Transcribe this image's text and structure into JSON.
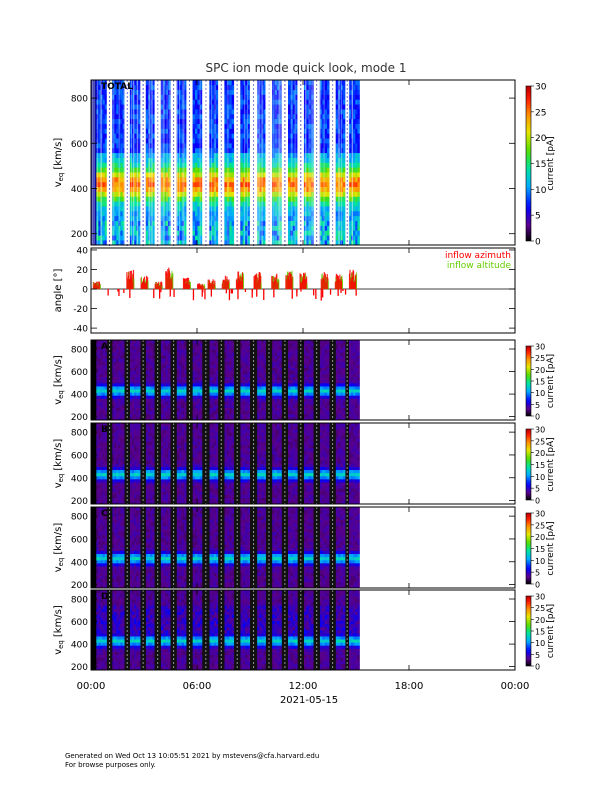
{
  "chart_data": {
    "type": "heatmap",
    "title": "SPC ion mode quick look, mode 1",
    "x_tick_labels": [
      "00:00",
      "06:00",
      "12:00",
      "18:00",
      "00:00"
    ],
    "x_date_label": "2021-05-15",
    "x_range_hours": [
      0,
      24
    ],
    "data_end_hours": 15.2,
    "panels": [
      {
        "id": "total",
        "type": "heatmap",
        "label": "TOTAL",
        "ylabel": "v_eq [km/s]",
        "ylabel_main": "v",
        "ylabel_sub": "eq",
        "ylabel_unit": "[km/s]",
        "ylim": [
          150,
          880
        ],
        "yticks": [
          200,
          400,
          600,
          800
        ],
        "colorbar": {
          "label": "current [pA]",
          "range": [
            0,
            30
          ],
          "ticks": [
            0,
            5,
            10,
            15,
            20,
            25,
            30
          ]
        }
      },
      {
        "id": "angle",
        "type": "scatter",
        "ylabel": "angle [°]",
        "ylim": [
          -45,
          42
        ],
        "yticks": [
          -40,
          -20,
          0,
          20,
          40
        ],
        "legend": [
          "inflow azimuth",
          "inflow altitude"
        ],
        "legend_colors": [
          "#ff0000",
          "#66cc00"
        ],
        "legend_position": "top-right"
      },
      {
        "id": "a",
        "type": "heatmap",
        "label": "A",
        "ylabel": "v_eq [km/s]",
        "ylabel_main": "v",
        "ylabel_sub": "eq",
        "ylabel_unit": "[km/s]",
        "ylim": [
          170,
          880
        ],
        "yticks": [
          200,
          400,
          600,
          800
        ],
        "minor_yticks": [
          300,
          500,
          700
        ],
        "colorbar": {
          "label": "current [pA]",
          "range": [
            0,
            30
          ],
          "ticks": [
            0,
            5,
            10,
            15,
            20,
            25,
            30
          ]
        }
      },
      {
        "id": "b",
        "type": "heatmap",
        "label": "B",
        "ylabel": "v_eq [km/s]",
        "ylabel_main": "v",
        "ylabel_sub": "eq",
        "ylabel_unit": "[km/s]",
        "ylim": [
          170,
          880
        ],
        "yticks": [
          200,
          400,
          600,
          800
        ],
        "minor_yticks": [
          300,
          500,
          700
        ],
        "colorbar": {
          "label": "current [pA]",
          "range": [
            0,
            30
          ],
          "ticks": [
            0,
            5,
            10,
            15,
            20,
            25,
            30
          ]
        }
      },
      {
        "id": "c",
        "type": "heatmap",
        "label": "C",
        "ylabel": "v_eq [km/s]",
        "ylabel_main": "v",
        "ylabel_sub": "eq",
        "ylabel_unit": "[km/s]",
        "ylim": [
          170,
          880
        ],
        "yticks": [
          200,
          400,
          600,
          800
        ],
        "minor_yticks": [
          300,
          500,
          700
        ],
        "colorbar": {
          "label": "current [pA]",
          "range": [
            0,
            30
          ],
          "ticks": [
            0,
            5,
            10,
            15,
            20,
            25,
            30
          ]
        }
      },
      {
        "id": "d",
        "type": "heatmap",
        "label": "D",
        "ylabel": "v_eq [km/s]",
        "ylabel_main": "v",
        "ylabel_sub": "eq",
        "ylabel_unit": "[km/s]",
        "ylim": [
          170,
          880
        ],
        "yticks": [
          200,
          400,
          600,
          800
        ],
        "minor_yticks": [
          300,
          500,
          700
        ],
        "colorbar": {
          "label": "current [pA]",
          "range": [
            0,
            30
          ],
          "ticks": [
            0,
            5,
            10,
            15,
            20,
            25,
            30
          ]
        }
      }
    ],
    "active_intervals_hours": [
      [
        0.3,
        0.9
      ],
      [
        1.2,
        1.9
      ],
      [
        2.2,
        2.8
      ],
      [
        3.1,
        3.6
      ],
      [
        3.95,
        4.5
      ],
      [
        4.85,
        5.4
      ],
      [
        5.75,
        6.3
      ],
      [
        6.7,
        7.2
      ],
      [
        7.55,
        8.1
      ],
      [
        8.45,
        9.0
      ],
      [
        9.4,
        9.9
      ],
      [
        10.25,
        10.8
      ],
      [
        11.15,
        11.7
      ],
      [
        12.05,
        12.6
      ],
      [
        12.95,
        13.5
      ],
      [
        13.85,
        14.4
      ],
      [
        14.6,
        15.2
      ]
    ],
    "angle_segments": [
      {
        "t0": 0.1,
        "t1": 0.5,
        "v": 8
      },
      {
        "t0": 2.0,
        "t1": 2.4,
        "v": 20
      },
      {
        "t0": 2.8,
        "t1": 3.2,
        "v": 14
      },
      {
        "t0": 3.6,
        "t1": 4.0,
        "v": 8
      },
      {
        "t0": 4.2,
        "t1": 4.6,
        "v": 22
      },
      {
        "t0": 5.2,
        "t1": 5.6,
        "v": 12
      },
      {
        "t0": 6.0,
        "t1": 6.4,
        "v": 6
      },
      {
        "t0": 6.6,
        "t1": 7.0,
        "v": 10
      },
      {
        "t0": 7.4,
        "t1": 7.8,
        "v": 14
      },
      {
        "t0": 8.2,
        "t1": 8.6,
        "v": 20
      },
      {
        "t0": 9.2,
        "t1": 9.6,
        "v": 18
      },
      {
        "t0": 10.2,
        "t1": 10.6,
        "v": 16
      },
      {
        "t0": 11.0,
        "t1": 11.4,
        "v": 22
      },
      {
        "t0": 11.8,
        "t1": 12.2,
        "v": 18
      },
      {
        "t0": 13.0,
        "t1": 13.4,
        "v": 18
      },
      {
        "t0": 13.8,
        "t1": 14.2,
        "v": 16
      },
      {
        "t0": 14.6,
        "t1": 15.0,
        "v": 20
      }
    ]
  },
  "footer": {
    "line1": "Generated on Wed Oct 13 10:05:51 2021 by mstevens@cfa.harvard.edu",
    "line2": "For browse purposes only."
  }
}
